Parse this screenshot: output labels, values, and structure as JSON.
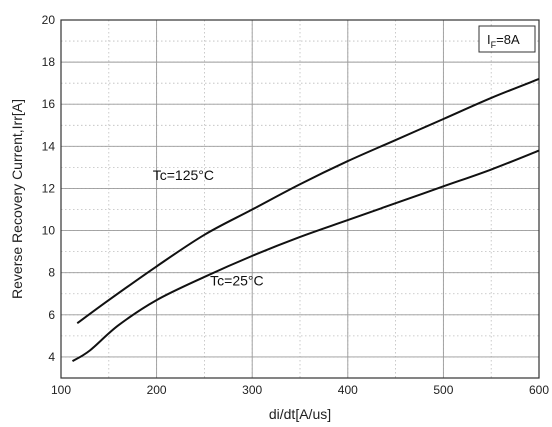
{
  "chart_data": {
    "type": "line",
    "xlabel": "di/dt[A/us]",
    "ylabel": "Reverse Recovery Current,Irr[A]",
    "xlim": [
      100,
      600
    ],
    "ylim": [
      3,
      20
    ],
    "x_ticks": [
      100,
      200,
      300,
      400,
      500,
      600
    ],
    "y_ticks": [
      4,
      6,
      8,
      10,
      12,
      14,
      16,
      18,
      20
    ],
    "x_minor_step": 50,
    "y_minor_step": 1,
    "grid": true,
    "condition_box": {
      "symbol": "I",
      "subscript": "F",
      "value": "=8A",
      "position": "top-right"
    },
    "series": [
      {
        "name": "Tc=125°C",
        "x": [
          117,
          150,
          200,
          250,
          300,
          350,
          400,
          450,
          500,
          550,
          600
        ],
        "y": [
          5.6,
          6.7,
          8.3,
          9.8,
          11.0,
          12.2,
          13.3,
          14.3,
          15.3,
          16.3,
          17.2
        ]
      },
      {
        "name": "Tc=25°C",
        "x": [
          112,
          130,
          160,
          200,
          250,
          300,
          350,
          400,
          450,
          500,
          550,
          600
        ],
        "y": [
          3.8,
          4.3,
          5.5,
          6.7,
          7.8,
          8.8,
          9.7,
          10.5,
          11.3,
          12.1,
          12.9,
          13.8
        ]
      }
    ],
    "curve_labels": [
      {
        "text": "Tc=125°C",
        "x": 228,
        "y": 12.4
      },
      {
        "text": "Tc=25°C",
        "x": 284,
        "y": 7.4
      }
    ]
  }
}
